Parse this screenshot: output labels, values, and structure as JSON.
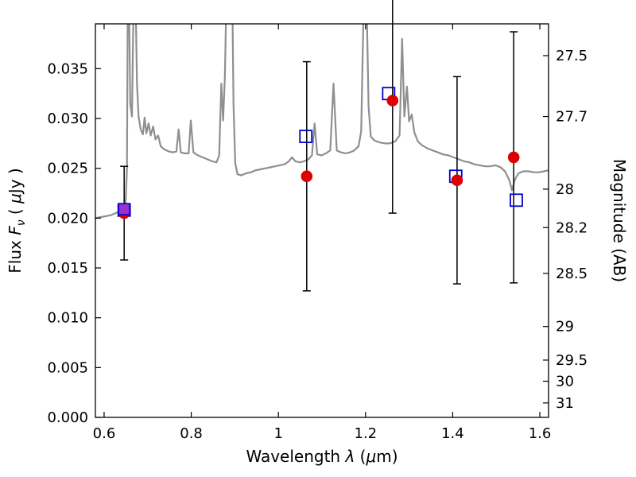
{
  "figure": {
    "background": "#ffffff",
    "frame_color": "#000000"
  },
  "chart_data": {
    "type": "line",
    "title": "",
    "xlabel": "Wavelength λ (μm)",
    "ylabel_left": "Flux Fν ( μJy )",
    "ylabel_right": "Magnitude (AB)",
    "xlim": [
      0.58,
      1.62
    ],
    "ylim": [
      0.0,
      0.0395
    ],
    "grid": false,
    "legend": "none",
    "x_ticks": {
      "values": [
        0.6,
        0.8,
        1.0,
        1.2,
        1.4,
        1.6
      ],
      "labels": [
        "0.6",
        "0.8",
        "1",
        "1.2",
        "1.4",
        "1.6"
      ]
    },
    "y_ticks_left": {
      "values": [
        0.0,
        0.005,
        0.01,
        0.015,
        0.02,
        0.025,
        0.03,
        0.035
      ],
      "labels": [
        "0.000",
        "0.005",
        "0.010",
        "0.015",
        "0.020",
        "0.025",
        "0.030",
        "0.035"
      ]
    },
    "y_ticks_right": {
      "flux_positions": [
        0.03631,
        0.0302,
        0.02291,
        0.01905,
        0.01445,
        0.00912,
        0.00575,
        0.00363,
        0.00145
      ],
      "labels": [
        "27.5",
        "27.7",
        "28",
        "28.2",
        "28.5",
        "29",
        "29.5",
        "30",
        "31"
      ]
    },
    "colors": {
      "spectrum": "#8f8f8f",
      "observed": "#dd0000",
      "model_edge": "#0000cc",
      "overlay_fill": "#9932cc",
      "error_bar": "#000000"
    },
    "series": {
      "spectrum": {
        "name": "model spectrum",
        "points": [
          [
            0.58,
            0.02
          ],
          [
            0.592,
            0.0201
          ],
          [
            0.604,
            0.0202
          ],
          [
            0.616,
            0.0203
          ],
          [
            0.626,
            0.0205
          ],
          [
            0.636,
            0.0207
          ],
          [
            0.644,
            0.0209
          ],
          [
            0.649,
            0.0212
          ],
          [
            0.6525,
            0.025
          ],
          [
            0.6545,
            0.043
          ],
          [
            0.657,
            0.043
          ],
          [
            0.66,
            0.0315
          ],
          [
            0.664,
            0.0302
          ],
          [
            0.668,
            0.043
          ],
          [
            0.672,
            0.043
          ],
          [
            0.6755,
            0.0335
          ],
          [
            0.679,
            0.0302
          ],
          [
            0.684,
            0.0289
          ],
          [
            0.689,
            0.0284
          ],
          [
            0.693,
            0.0301
          ],
          [
            0.697,
            0.0285
          ],
          [
            0.702,
            0.0295
          ],
          [
            0.707,
            0.0283
          ],
          [
            0.7125,
            0.0292
          ],
          [
            0.718,
            0.0279
          ],
          [
            0.724,
            0.0283
          ],
          [
            0.73,
            0.0272
          ],
          [
            0.738,
            0.0269
          ],
          [
            0.748,
            0.0267
          ],
          [
            0.758,
            0.0266
          ],
          [
            0.766,
            0.0267
          ],
          [
            0.771,
            0.0289
          ],
          [
            0.776,
            0.0266
          ],
          [
            0.785,
            0.0265
          ],
          [
            0.794,
            0.0265
          ],
          [
            0.799,
            0.0298
          ],
          [
            0.805,
            0.0266
          ],
          [
            0.815,
            0.0263
          ],
          [
            0.826,
            0.0261
          ],
          [
            0.837,
            0.0259
          ],
          [
            0.848,
            0.0257
          ],
          [
            0.858,
            0.0256
          ],
          [
            0.864,
            0.0263
          ],
          [
            0.869,
            0.0335
          ],
          [
            0.873,
            0.0298
          ],
          [
            0.877,
            0.034
          ],
          [
            0.881,
            0.043
          ],
          [
            0.888,
            0.043
          ],
          [
            0.894,
            0.043
          ],
          [
            0.897,
            0.0315
          ],
          [
            0.901,
            0.0255
          ],
          [
            0.906,
            0.0244
          ],
          [
            0.915,
            0.0243
          ],
          [
            0.926,
            0.0245
          ],
          [
            0.937,
            0.0246
          ],
          [
            0.948,
            0.0248
          ],
          [
            0.959,
            0.0249
          ],
          [
            0.97,
            0.025
          ],
          [
            0.981,
            0.0251
          ],
          [
            0.992,
            0.0252
          ],
          [
            1.003,
            0.0253
          ],
          [
            1.014,
            0.0254
          ],
          [
            1.024,
            0.0257
          ],
          [
            1.031,
            0.0261
          ],
          [
            1.039,
            0.0257
          ],
          [
            1.049,
            0.0256
          ],
          [
            1.059,
            0.0257
          ],
          [
            1.069,
            0.0259
          ],
          [
            1.077,
            0.0263
          ],
          [
            1.083,
            0.0295
          ],
          [
            1.089,
            0.0264
          ],
          [
            1.099,
            0.0263
          ],
          [
            1.109,
            0.0265
          ],
          [
            1.119,
            0.0268
          ],
          [
            1.1265,
            0.0335
          ],
          [
            1.134,
            0.0268
          ],
          [
            1.144,
            0.0266
          ],
          [
            1.154,
            0.0265
          ],
          [
            1.164,
            0.0266
          ],
          [
            1.174,
            0.0268
          ],
          [
            1.184,
            0.0272
          ],
          [
            1.19,
            0.0287
          ],
          [
            1.196,
            0.042
          ],
          [
            1.202,
            0.043
          ],
          [
            1.207,
            0.0312
          ],
          [
            1.212,
            0.0282
          ],
          [
            1.22,
            0.0278
          ],
          [
            1.232,
            0.0276
          ],
          [
            1.244,
            0.0275
          ],
          [
            1.256,
            0.0275
          ],
          [
            1.268,
            0.0277
          ],
          [
            1.278,
            0.0283
          ],
          [
            1.284,
            0.038
          ],
          [
            1.289,
            0.0302
          ],
          [
            1.295,
            0.0332
          ],
          [
            1.3,
            0.0297
          ],
          [
            1.306,
            0.0304
          ],
          [
            1.312,
            0.0286
          ],
          [
            1.32,
            0.0277
          ],
          [
            1.33,
            0.0273
          ],
          [
            1.342,
            0.027
          ],
          [
            1.354,
            0.0268
          ],
          [
            1.366,
            0.0266
          ],
          [
            1.378,
            0.0264
          ],
          [
            1.39,
            0.0263
          ],
          [
            1.402,
            0.0261
          ],
          [
            1.414,
            0.0259
          ],
          [
            1.426,
            0.0257
          ],
          [
            1.438,
            0.0256
          ],
          [
            1.45,
            0.0254
          ],
          [
            1.462,
            0.0253
          ],
          [
            1.474,
            0.0252
          ],
          [
            1.486,
            0.0252
          ],
          [
            1.498,
            0.0253
          ],
          [
            1.51,
            0.0251
          ],
          [
            1.52,
            0.0247
          ],
          [
            1.53,
            0.0238
          ],
          [
            1.536,
            0.0228
          ],
          [
            1.543,
            0.0239
          ],
          [
            1.551,
            0.0245
          ],
          [
            1.562,
            0.0247
          ],
          [
            1.574,
            0.0247
          ],
          [
            1.586,
            0.0246
          ],
          [
            1.598,
            0.0246
          ],
          [
            1.609,
            0.0247
          ],
          [
            1.62,
            0.0248
          ]
        ]
      },
      "observed": {
        "name": "observed photometry (filled circles with error bars)",
        "points": [
          {
            "x": 0.646,
            "y": 0.0205,
            "err": 0.0047
          },
          {
            "x": 1.065,
            "y": 0.0242,
            "err": 0.0115
          },
          {
            "x": 1.262,
            "y": 0.0318,
            "err": 0.0113
          },
          {
            "x": 1.41,
            "y": 0.0238,
            "err": 0.0104
          },
          {
            "x": 1.54,
            "y": 0.0261,
            "err": 0.0126
          }
        ]
      },
      "model_photometry": {
        "name": "model photometry (open squares)",
        "points": [
          {
            "x": 0.646,
            "y": 0.0208
          },
          {
            "x": 1.063,
            "y": 0.0282
          },
          {
            "x": 1.253,
            "y": 0.0325
          },
          {
            "x": 1.407,
            "y": 0.0242
          },
          {
            "x": 1.546,
            "y": 0.0218
          }
        ]
      },
      "overlay": {
        "name": "filled square overlay (first band)",
        "points": [
          {
            "x": 0.646,
            "y": 0.0209
          }
        ]
      }
    },
    "label_parts": {
      "x": [
        {
          "t": "Wavelength  "
        },
        {
          "t": "λ",
          "i": 1
        },
        {
          "t": " ("
        },
        {
          "t": "μ",
          "i": 1
        },
        {
          "t": "m)"
        }
      ],
      "y_left": [
        {
          "t": "Flux  "
        },
        {
          "t": "F",
          "i": 1
        },
        {
          "t": "ν",
          "i": 1,
          "dy": 5,
          "size": 14
        },
        {
          "t": "  ( ",
          "dy": -5
        },
        {
          "t": "μ",
          "i": 1
        },
        {
          "t": "Jy )"
        }
      ],
      "y_right": [
        {
          "t": "Magnitude (AB)"
        }
      ]
    }
  }
}
